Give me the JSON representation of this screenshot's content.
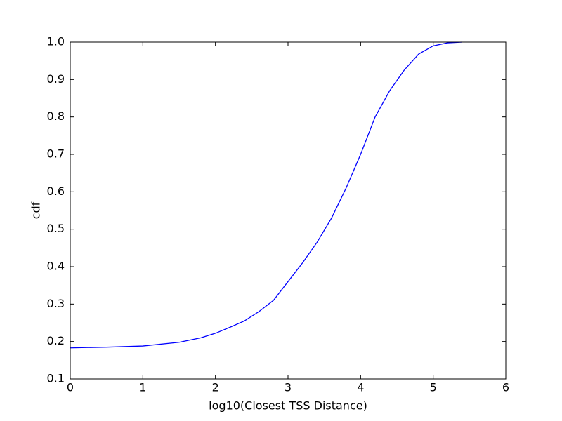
{
  "chart_data": {
    "type": "line",
    "x_label": "log10(Closest TSS Distance)",
    "y_label": "cdf",
    "x": [
      0,
      0.5,
      1.0,
      1.5,
      1.8,
      2.0,
      2.2,
      2.4,
      2.6,
      2.8,
      3.0,
      3.2,
      3.4,
      3.6,
      3.8,
      3.9,
      4.0,
      4.2,
      4.4,
      4.6,
      4.8,
      5.0,
      5.2,
      5.4
    ],
    "series": [
      {
        "name": "cdf",
        "color": "#0000ff",
        "values": [
          0.183,
          0.185,
          0.188,
          0.198,
          0.21,
          0.222,
          0.238,
          0.255,
          0.28,
          0.31,
          0.36,
          0.41,
          0.465,
          0.53,
          0.61,
          0.655,
          0.7,
          0.8,
          0.87,
          0.925,
          0.968,
          0.99,
          0.998,
          1.0
        ]
      }
    ],
    "xlim": [
      0,
      6
    ],
    "ylim": [
      0.1,
      1.0
    ],
    "xticks": [
      0,
      1,
      2,
      3,
      4,
      5,
      6
    ],
    "yticks": [
      0.1,
      0.2,
      0.3,
      0.4,
      0.5,
      0.6,
      0.7,
      0.8,
      0.9,
      {
        "value": 1.0,
        "label": "1.0"
      }
    ],
    "grid": false
  }
}
